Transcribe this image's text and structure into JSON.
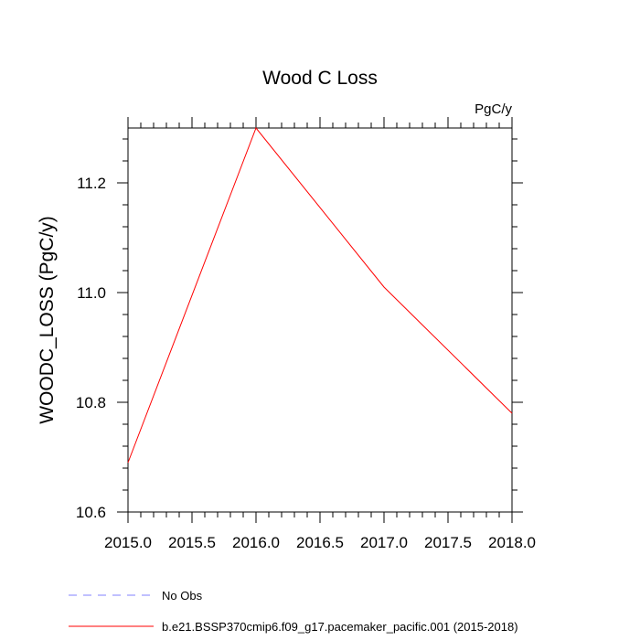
{
  "chart_data": {
    "type": "line",
    "title": "Wood C Loss",
    "units_label": "PgC/y",
    "xlabel": "",
    "ylabel": "WOODC_LOSS  (PgC/y)",
    "xlim": [
      2015.0,
      2018.0
    ],
    "ylim": [
      10.6,
      11.3
    ],
    "x_ticks": [
      2015.0,
      2015.5,
      2016.0,
      2016.5,
      2017.0,
      2017.5,
      2018.0
    ],
    "x_tick_labels": [
      "2015.0",
      "2015.5",
      "2016.0",
      "2016.5",
      "2017.0",
      "2017.5",
      "2018.0"
    ],
    "y_ticks": [
      10.6,
      10.8,
      11.0,
      11.2
    ],
    "y_tick_labels": [
      "10.6",
      "10.8",
      "11.0",
      "11.2"
    ],
    "grid": false,
    "legend_position": "bottom-left",
    "series": [
      {
        "name": "b.e21.BSSP370cmip6.f09_g17.pacemaker_pacific.001 (2015-2018)",
        "color": "#ff0000",
        "style": "solid",
        "x": [
          2015,
          2016,
          2017,
          2018
        ],
        "y": [
          10.69,
          11.3,
          11.01,
          10.78
        ]
      }
    ],
    "legend": [
      {
        "label": "No Obs",
        "color": "#8080ff",
        "style": "dashed"
      },
      {
        "label": "b.e21.BSSP370cmip6.f09_g17.pacemaker_pacific.001 (2015-2018)",
        "color": "#ff0000",
        "style": "solid"
      }
    ]
  }
}
